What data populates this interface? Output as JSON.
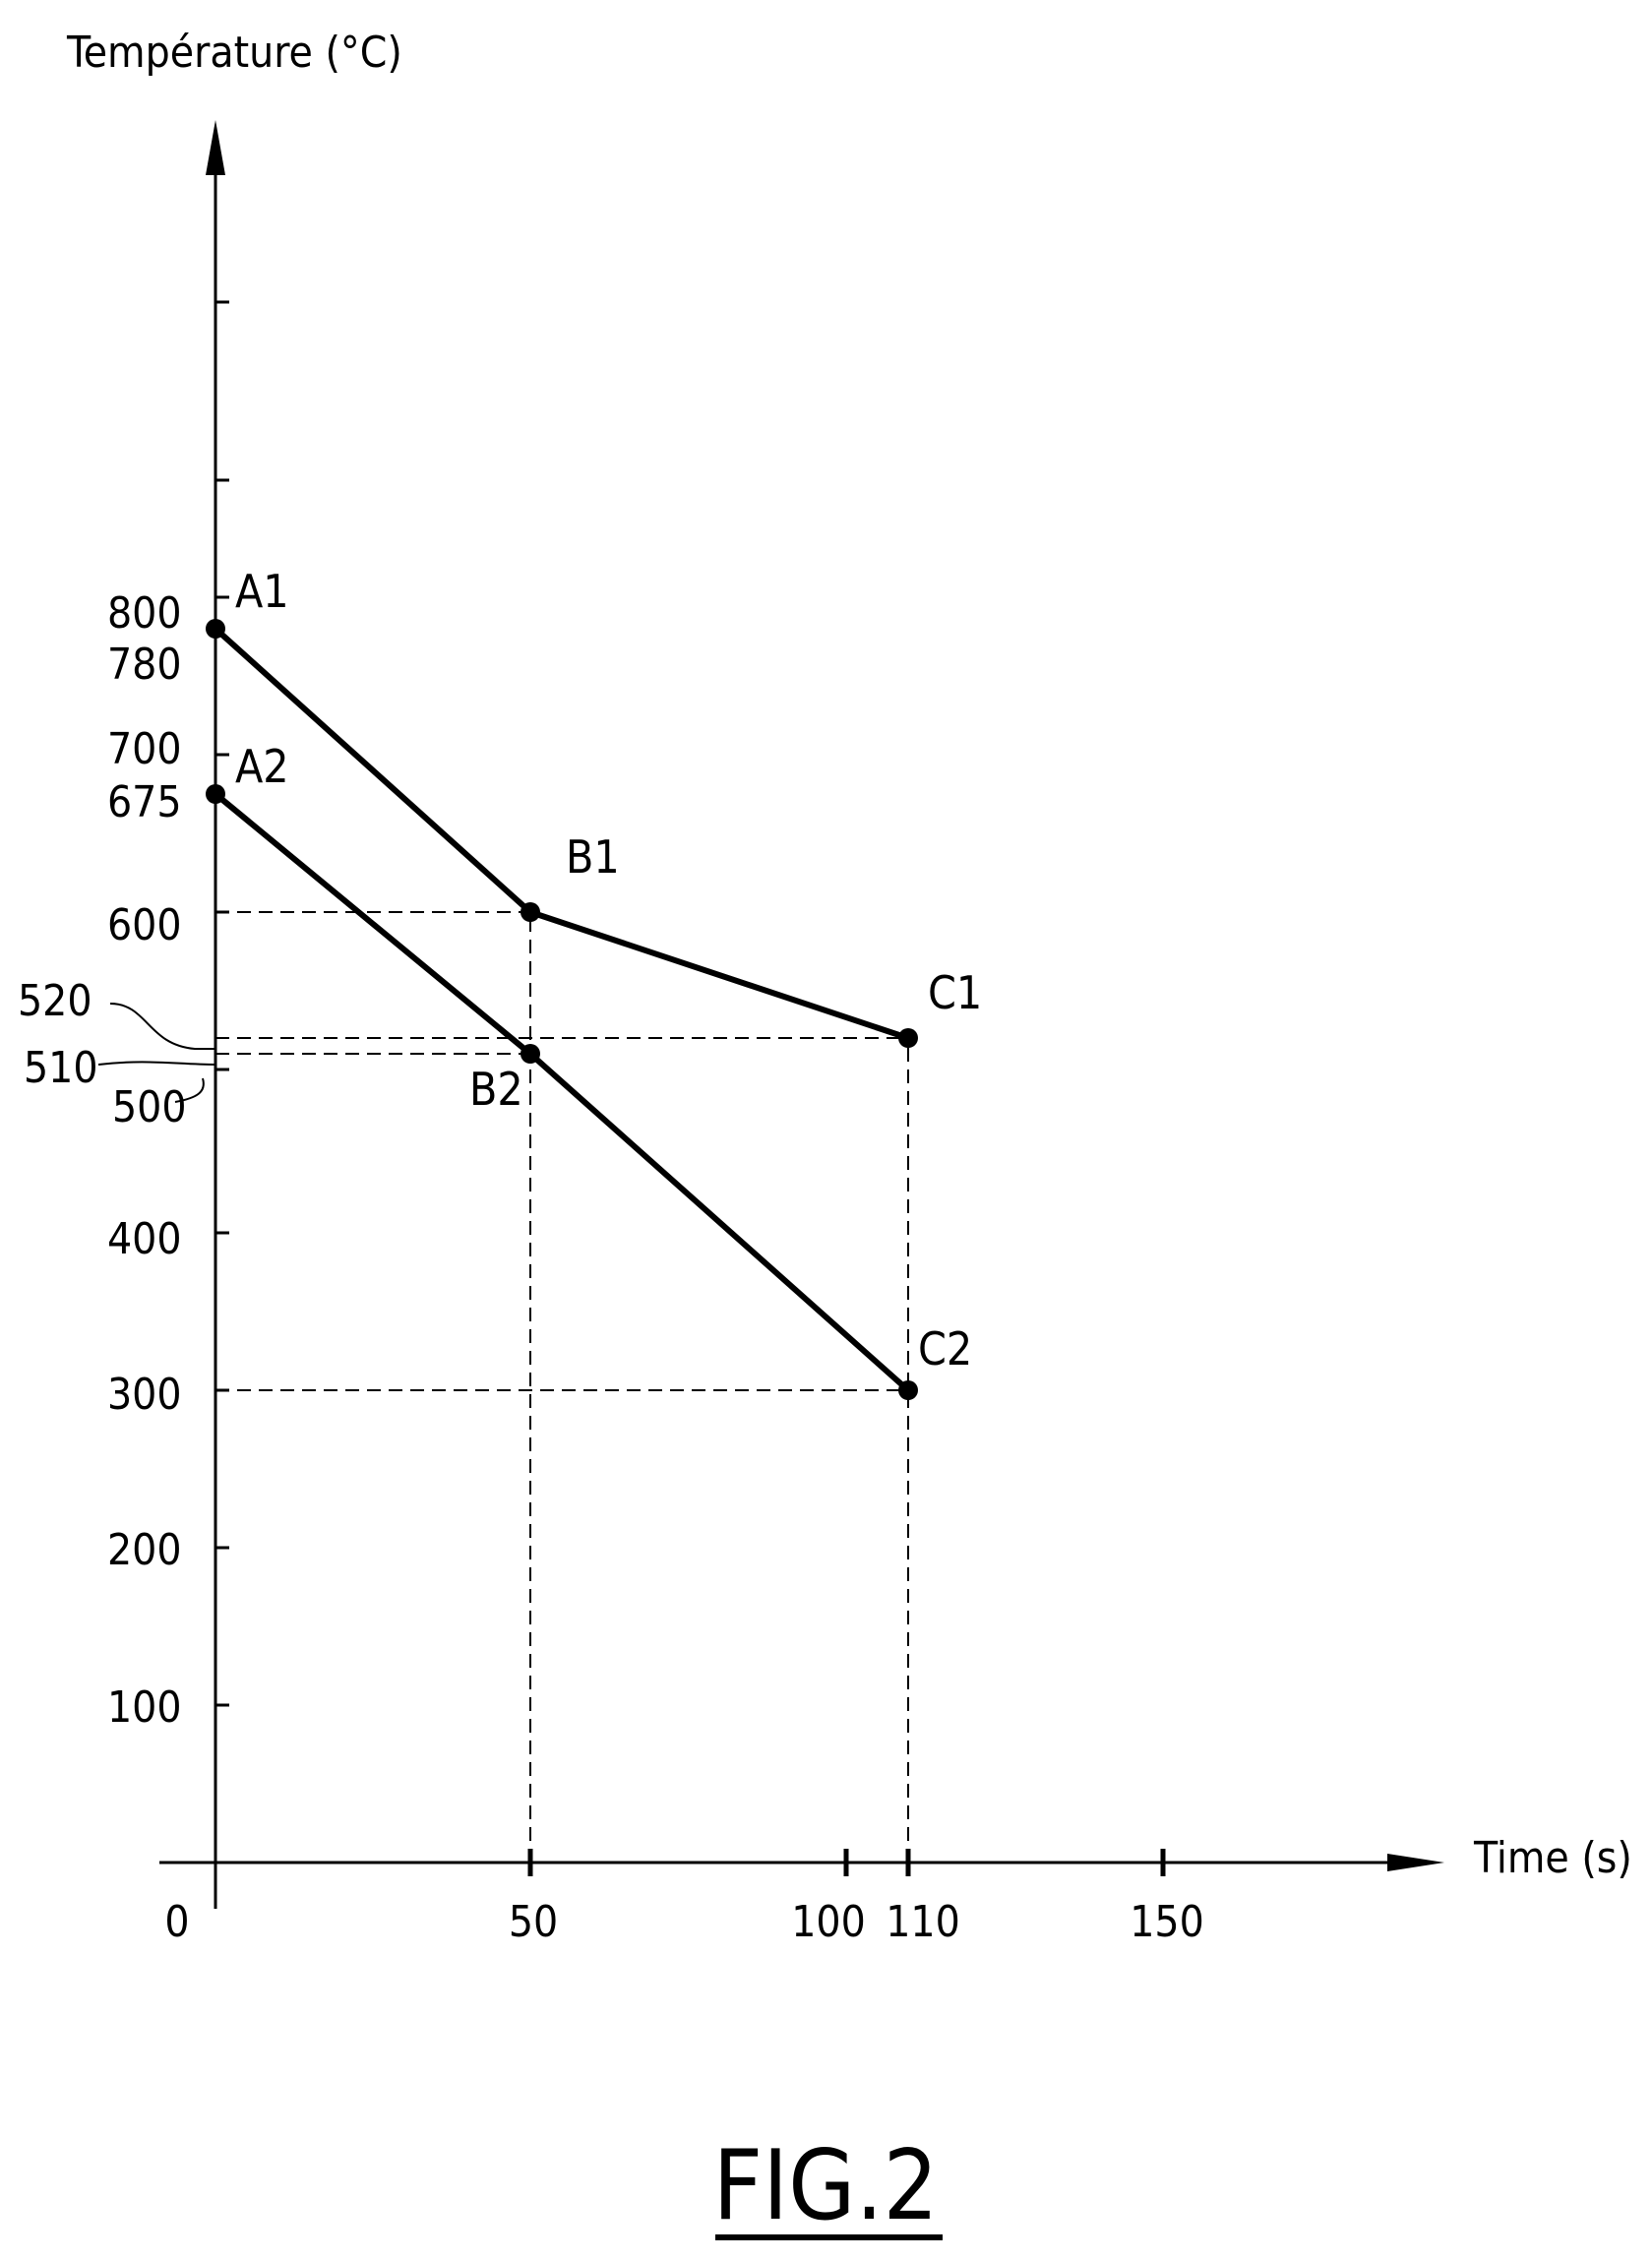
{
  "figure_label": "FIG.2",
  "chart_data": {
    "type": "line",
    "ylabel": "Température (°C)",
    "xlabel": "Time (s)",
    "x_origin_label": "0",
    "x_ticks": [
      {
        "value": 50,
        "label": "50"
      },
      {
        "value": 100,
        "label": "100"
      },
      {
        "value": 110,
        "label": "110"
      },
      {
        "value": 150,
        "label": "150"
      }
    ],
    "y_ticks": [
      {
        "value": 100,
        "label": "100"
      },
      {
        "value": 200,
        "label": "200"
      },
      {
        "value": 300,
        "label": "300"
      },
      {
        "value": 400,
        "label": "400"
      },
      {
        "value": 500,
        "label": "500"
      },
      {
        "value": 510,
        "label": "510"
      },
      {
        "value": 520,
        "label": "520"
      },
      {
        "value": 600,
        "label": "600"
      },
      {
        "value": 675,
        "label": "675"
      },
      {
        "value": 700,
        "label": "700"
      },
      {
        "value": 780,
        "label": "780"
      },
      {
        "value": 800,
        "label": "800"
      }
    ],
    "y_unlabeled_ticks": [
      1000,
      1100
    ],
    "series": [
      {
        "points": [
          {
            "x": 0,
            "y": 780,
            "label": "A1"
          },
          {
            "x": 50,
            "y": 600,
            "label": "B1"
          },
          {
            "x": 110,
            "y": 520,
            "label": "C1"
          }
        ]
      },
      {
        "points": [
          {
            "x": 0,
            "y": 675,
            "label": "A2"
          },
          {
            "x": 50,
            "y": 510,
            "label": "B2"
          },
          {
            "x": 110,
            "y": 300,
            "label": "C2"
          }
        ]
      }
    ],
    "guides": [
      {
        "from": [
          0,
          600
        ],
        "to": [
          50,
          600
        ]
      },
      {
        "from": [
          0,
          520
        ],
        "to": [
          110,
          520
        ]
      },
      {
        "from": [
          0,
          510
        ],
        "to": [
          50,
          510
        ]
      },
      {
        "from": [
          0,
          300
        ],
        "to": [
          110,
          300
        ]
      },
      {
        "from": [
          50,
          0
        ],
        "to": [
          50,
          600
        ]
      },
      {
        "from": [
          110,
          0
        ],
        "to": [
          110,
          520
        ]
      }
    ]
  }
}
